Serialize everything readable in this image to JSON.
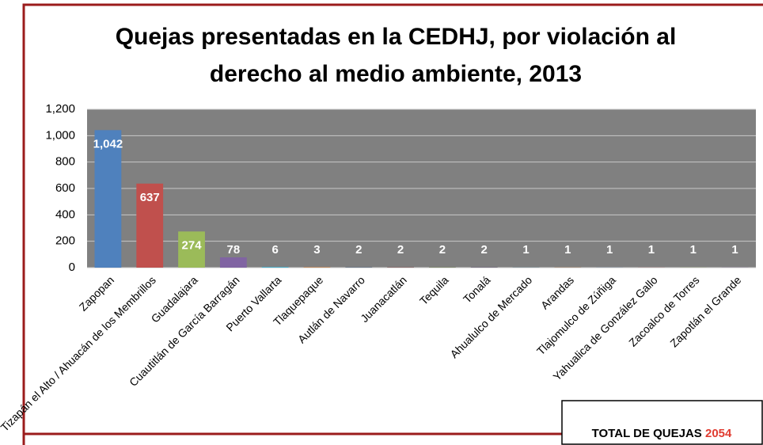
{
  "chart_data": {
    "type": "bar",
    "title": [
      "Quejas presentadas en la CEDHJ, por violación al",
      "derecho al medio ambiente, 2013"
    ],
    "categories": [
      "Zapopan",
      "Tizapán el Alto / Ahuacán de los Membrillos",
      "Guadalajara",
      "Cuautitlán de García Barragán",
      "Puerto Vallarta",
      "Tlaquepaque",
      "Autlán de Navarro",
      "Juanacatlán",
      "Tequila",
      "Tonalá",
      "Ahualulco de Mercado",
      "Arandas",
      "Tlajomulco de Zúñiga",
      "Yahualica de González Gallo",
      "Zacoalco de Torres",
      "Zapotlán el Grande"
    ],
    "values": [
      1042,
      637,
      274,
      78,
      6,
      3,
      2,
      2,
      2,
      2,
      1,
      1,
      1,
      1,
      1,
      1
    ],
    "value_labels": [
      "1,042",
      "637",
      "274",
      "78",
      "6",
      "3",
      "2",
      "2",
      "2",
      "2",
      "1",
      "1",
      "1",
      "1",
      "1",
      "1"
    ],
    "colors": [
      "#4f81bd",
      "#c0504d",
      "#9bbb59",
      "#8064a2",
      "#4bacc6",
      "#f79646",
      "#2c4d75",
      "#772c2a",
      "#5f7530",
      "#4d3b62",
      "#276a7c",
      "#b65708",
      "#729aca",
      "#cd7371",
      "#afc97a",
      "#9983b5"
    ],
    "ylim": [
      0,
      1200
    ],
    "yticks": [
      0,
      200,
      400,
      600,
      800,
      {
        "value": 1000,
        "label": "1,000"
      },
      {
        "value": 1200,
        "label": "1,200"
      }
    ],
    "grid": true
  },
  "total": {
    "label": "TOTAL DE QUEJAS",
    "value": 2054
  }
}
